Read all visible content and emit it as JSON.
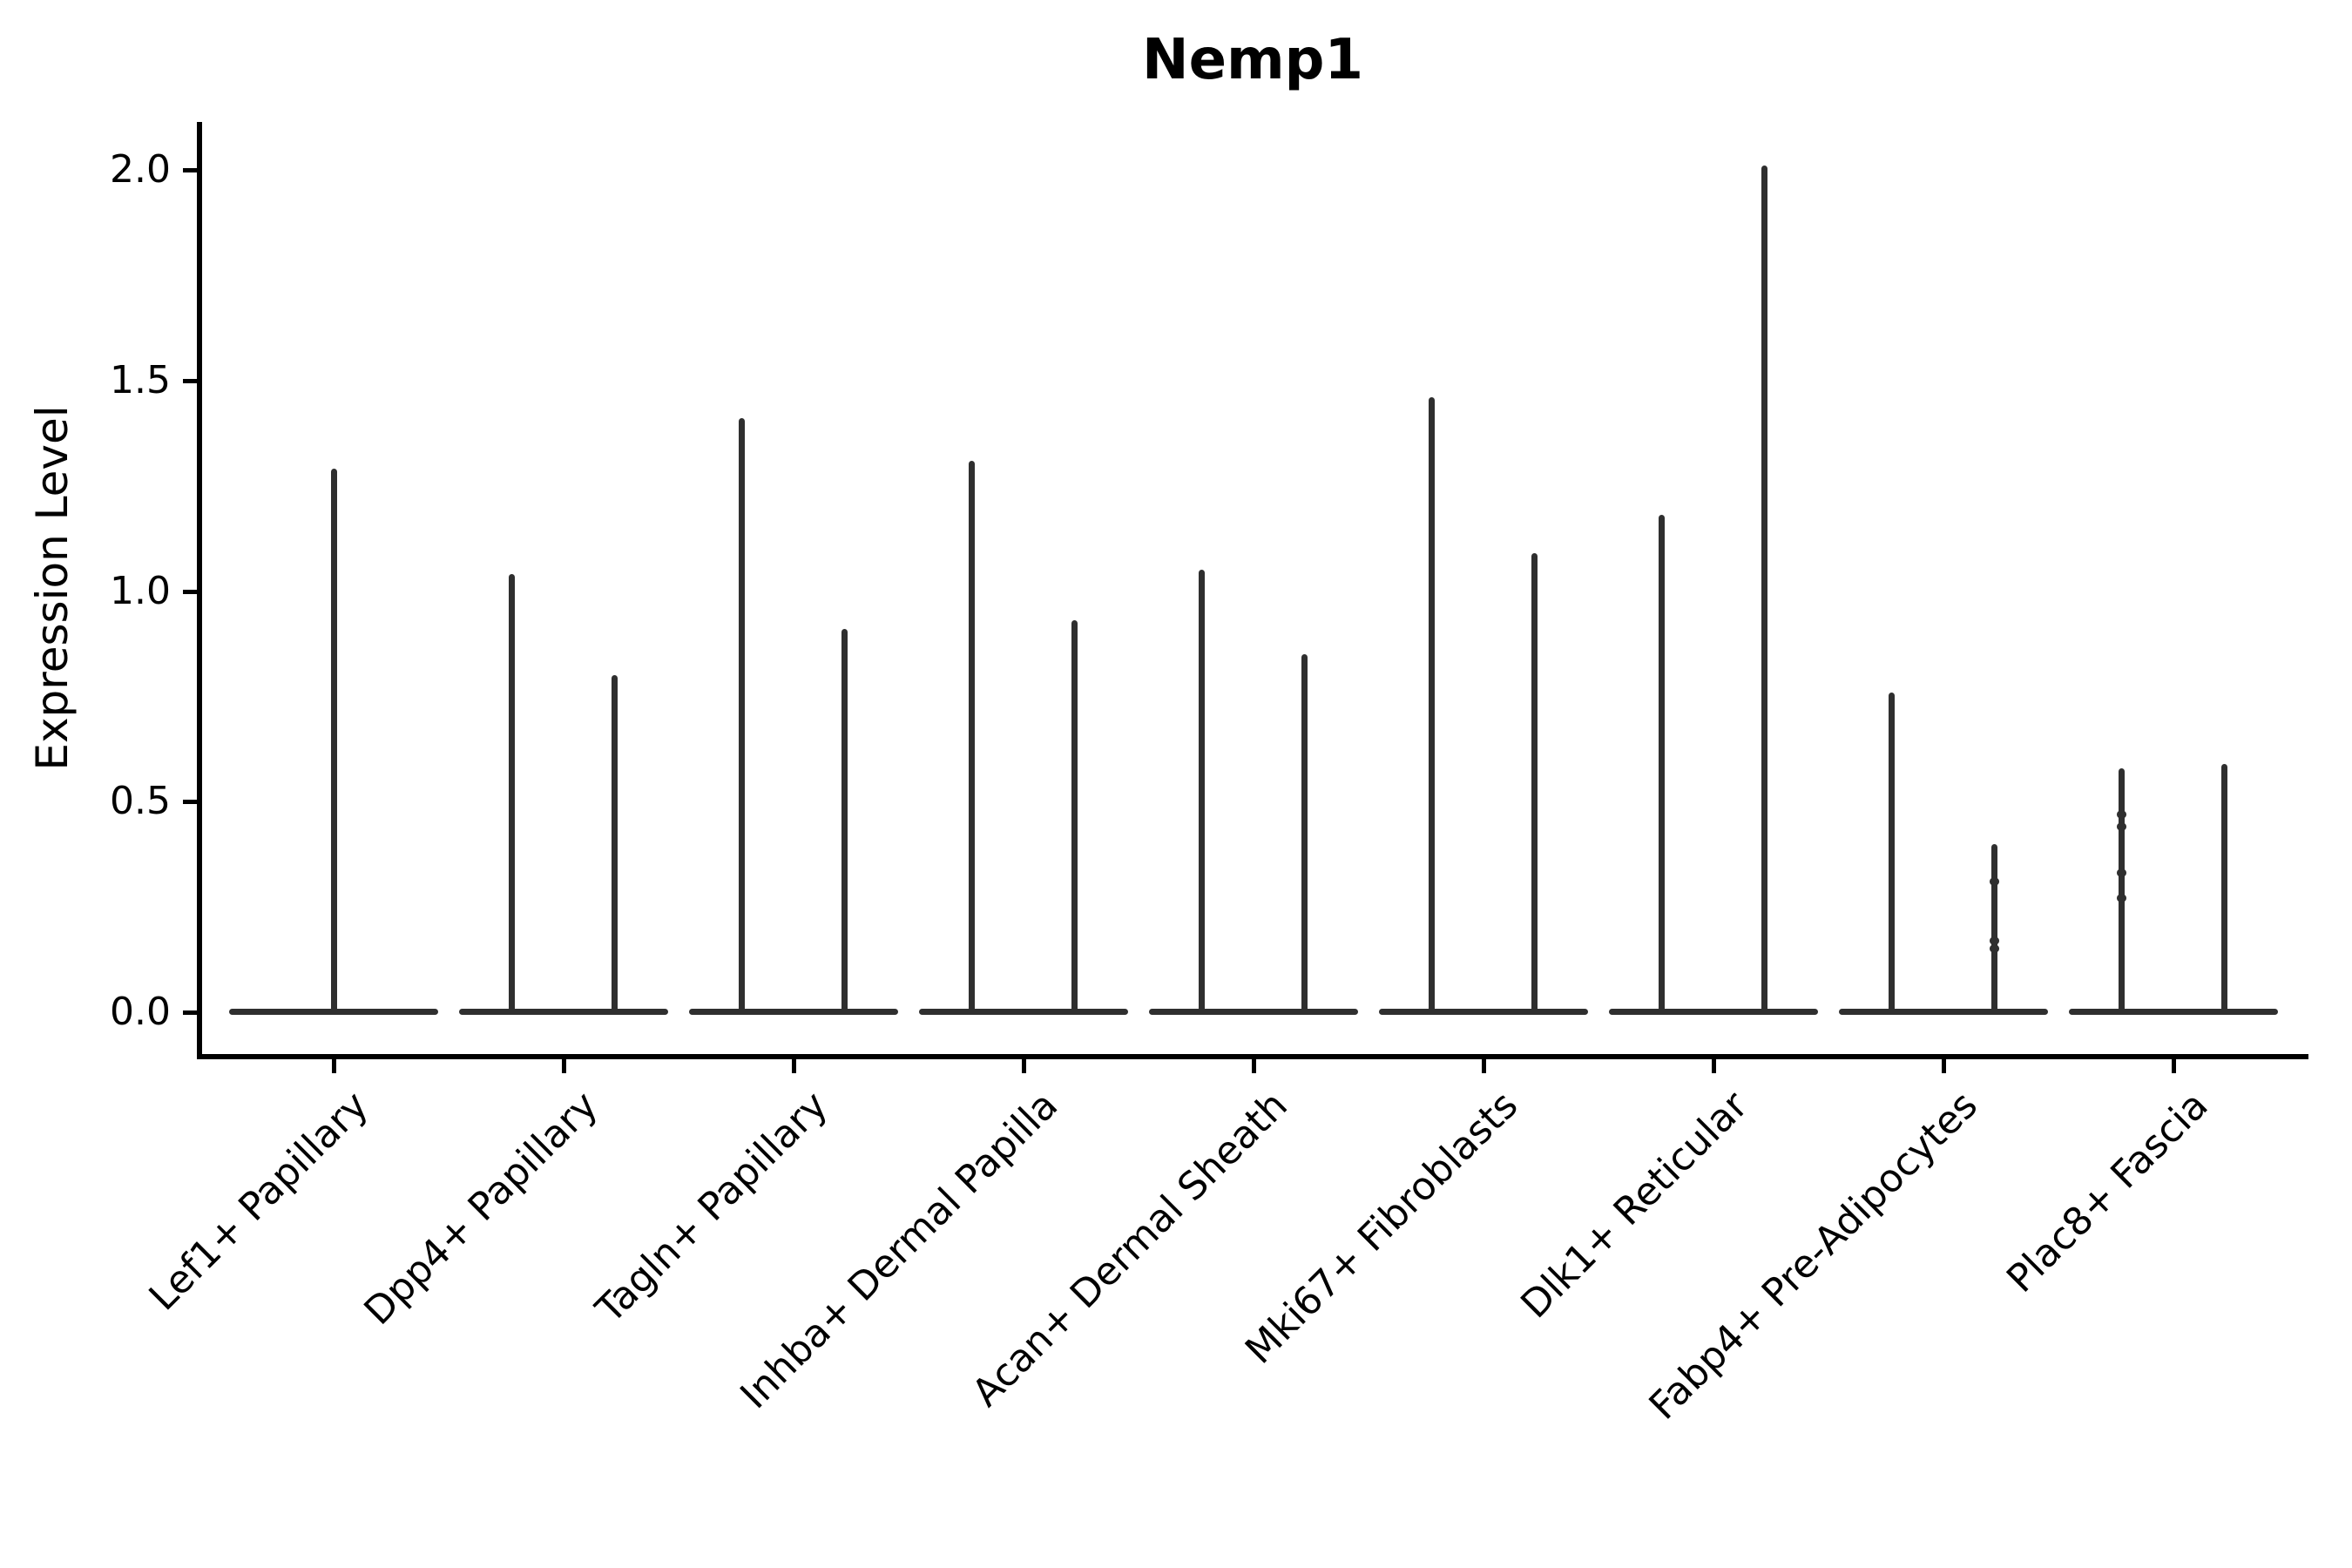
{
  "figure": {
    "background": "#ffffff",
    "violin_color": "#2f2f2f",
    "axis_color": "#000000"
  },
  "chart_data": {
    "type": "violin",
    "title": "Nemp1",
    "xlabel": "",
    "ylabel": "Expression Level",
    "ylim": [
      -0.1,
      2.11
    ],
    "yticks": [
      0.0,
      0.5,
      1.0,
      1.5,
      2.0
    ],
    "grid": false,
    "legend": null,
    "categories": [
      "Lef1+ Papillary",
      "Dpp4+ Papillary",
      "Tagln+ Papillary",
      "Inhba+ Dermal Papilla",
      "Acan+ Dermal Sheath",
      "Mki67+ Fibroblasts",
      "Dlk1+ Reticular",
      "Fabp4+ Pre-Adipocytes",
      "Plac8+ Fascia"
    ],
    "violins": [
      {
        "category": "Lef1+ Papillary",
        "spikes": [
          {
            "position": "center",
            "max": 1.29
          }
        ]
      },
      {
        "category": "Dpp4+ Papillary",
        "spikes": [
          {
            "position": "left",
            "max": 1.04
          },
          {
            "position": "right",
            "max": 0.8
          }
        ]
      },
      {
        "category": "Tagln+ Papillary",
        "spikes": [
          {
            "position": "left",
            "max": 1.41
          },
          {
            "position": "right",
            "max": 0.91
          }
        ]
      },
      {
        "category": "Inhba+ Dermal Papilla",
        "spikes": [
          {
            "position": "left",
            "max": 1.31
          },
          {
            "position": "right",
            "max": 0.93
          }
        ]
      },
      {
        "category": "Acan+ Dermal Sheath",
        "spikes": [
          {
            "position": "left",
            "max": 1.05
          },
          {
            "position": "right",
            "max": 0.85
          }
        ]
      },
      {
        "category": "Mki67+ Fibroblasts",
        "spikes": [
          {
            "position": "left",
            "max": 1.46
          },
          {
            "position": "right",
            "max": 1.09
          }
        ]
      },
      {
        "category": "Dlk1+ Reticular",
        "spikes": [
          {
            "position": "left",
            "max": 1.18
          },
          {
            "position": "right",
            "max": 2.01
          }
        ]
      },
      {
        "category": "Fabp4+ Pre-Adipocytes",
        "spikes": [
          {
            "position": "left",
            "max": 0.76
          },
          {
            "position": "right",
            "max": 0.4,
            "dots": [
              0.31,
              0.17,
              0.15
            ]
          }
        ]
      },
      {
        "category": "Plac8+ Fascia",
        "spikes": [
          {
            "position": "left",
            "max": 0.58,
            "dots": [
              0.47,
              0.44,
              0.33,
              0.27
            ]
          },
          {
            "position": "right",
            "max": 0.59
          }
        ]
      }
    ]
  }
}
